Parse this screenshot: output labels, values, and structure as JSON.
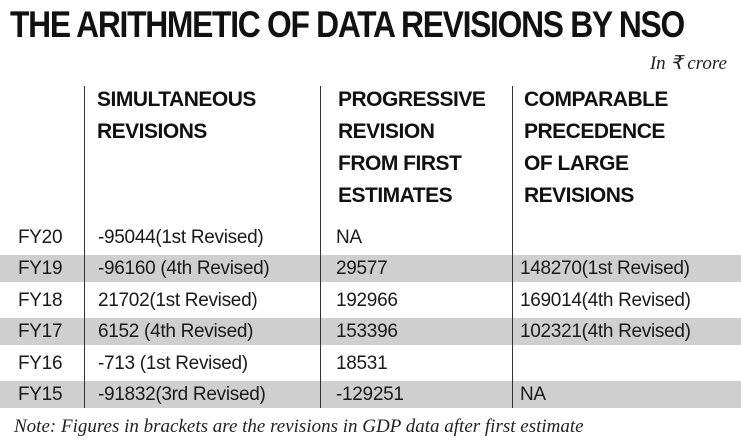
{
  "title": "THE ARITHMETIC OF DATA REVISIONS BY NSO",
  "unit": "In ₹ crore",
  "headers": [
    "SIMULTANEOUS\nREVISIONS",
    "PROGRESSIVE\nREVISION\nFROM FIRST\nESTIMATES",
    "COMPARABLE\nPRECEDENCE\nOF LARGE\nREVISIONS"
  ],
  "rows": [
    {
      "year": "FY20",
      "simultaneous": "-95044(1st Revised)",
      "progressive": "NA",
      "comparable": ""
    },
    {
      "year": "FY19",
      "simultaneous": "-96160 (4th Revised)",
      "progressive": "29577",
      "comparable": "148270(1st Revised)"
    },
    {
      "year": "FY18",
      "simultaneous": "21702(1st Revised)",
      "progressive": "192966",
      "comparable": "169014(4th Revised)"
    },
    {
      "year": "FY17",
      "simultaneous": "6152 (4th Revised)",
      "progressive": "153396",
      "comparable": "102321(4th Revised)"
    },
    {
      "year": "FY16",
      "simultaneous": "-713 (1st Revised)",
      "progressive": "18531",
      "comparable": ""
    },
    {
      "year": "FY15",
      "simultaneous": "-91832(3rd Revised)",
      "progressive": "-129251",
      "comparable": "NA"
    }
  ],
  "note": "Note: Figures in brackets are the revisions in GDP data after first estimate"
}
